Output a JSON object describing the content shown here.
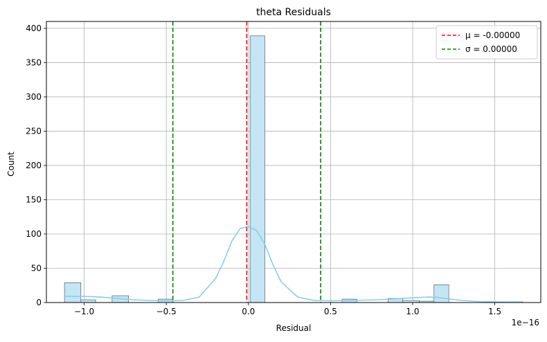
{
  "chart_data": {
    "type": "histogram",
    "title": "theta Residuals",
    "xlabel": "Residual",
    "ylabel": "Count",
    "offset_text": "1e−16",
    "xlim": [
      -1.23,
      1.78
    ],
    "ylim": [
      0,
      410
    ],
    "grid": true,
    "x_ticks": [
      -1.0,
      -0.5,
      0.0,
      0.5,
      1.0,
      1.5
    ],
    "x_tick_labels": [
      "−1.0",
      "−0.5",
      "0.0",
      "0.5",
      "1.0",
      "1.5"
    ],
    "y_ticks": [
      0,
      50,
      100,
      150,
      200,
      250,
      300,
      350,
      400
    ],
    "y_tick_labels": [
      "0",
      "50",
      "100",
      "150",
      "200",
      "250",
      "300",
      "350",
      "400"
    ],
    "bins": [
      {
        "x0": -1.12,
        "x1": -1.02,
        "count": 29
      },
      {
        "x0": -1.02,
        "x1": -0.93,
        "count": 4
      },
      {
        "x0": -0.83,
        "x1": -0.73,
        "count": 10
      },
      {
        "x0": -0.55,
        "x1": -0.46,
        "count": 5
      },
      {
        "x0": 0.01,
        "x1": 0.1,
        "count": 389
      },
      {
        "x0": 0.57,
        "x1": 0.66,
        "count": 5
      },
      {
        "x0": 0.85,
        "x1": 0.94,
        "count": 6
      },
      {
        "x0": 0.94,
        "x1": 1.04,
        "count": 3
      },
      {
        "x0": 1.04,
        "x1": 1.13,
        "count": 2
      },
      {
        "x0": 1.13,
        "x1": 1.22,
        "count": 26
      },
      {
        "x0": 1.57,
        "x1": 1.67,
        "count": 1
      }
    ],
    "kde": {
      "x": [
        -1.12,
        -1.0,
        -0.9,
        -0.8,
        -0.7,
        -0.6,
        -0.5,
        -0.4,
        -0.3,
        -0.2,
        -0.15,
        -0.1,
        -0.05,
        0.0,
        0.05,
        0.1,
        0.15,
        0.2,
        0.3,
        0.4,
        0.5,
        0.6,
        0.7,
        0.8,
        0.9,
        1.0,
        1.1,
        1.15,
        1.2,
        1.3,
        1.4,
        1.5,
        1.6,
        1.67
      ],
      "y": [
        9,
        9,
        8,
        6,
        4,
        3,
        2.5,
        3,
        8,
        35,
        60,
        90,
        108,
        111,
        105,
        85,
        55,
        30,
        8,
        3,
        2.5,
        3,
        3.5,
        4,
        5.5,
        7,
        8,
        7.5,
        6,
        3,
        1.5,
        1,
        0.8,
        0.8
      ]
    },
    "reference_lines": [
      {
        "name": "μ = -0.00000",
        "x": -0.01,
        "color": "#ff0000"
      },
      {
        "name": "σ = 0.00000",
        "x": -0.46,
        "color": "#008000"
      },
      {
        "name": "σ = 0.00000",
        "x": 0.44,
        "color": "#008000"
      }
    ],
    "legend_placement": "top-right",
    "legend": [
      {
        "label": "μ = -0.00000",
        "color": "#ff0000"
      },
      {
        "label": "σ = 0.00000",
        "color": "#008000"
      }
    ],
    "colors": {
      "bar_fill": "#c3e5f4",
      "bar_edge": "#3a4a55",
      "kde": "#87ceeb",
      "grid": "#b0b0b0"
    }
  }
}
